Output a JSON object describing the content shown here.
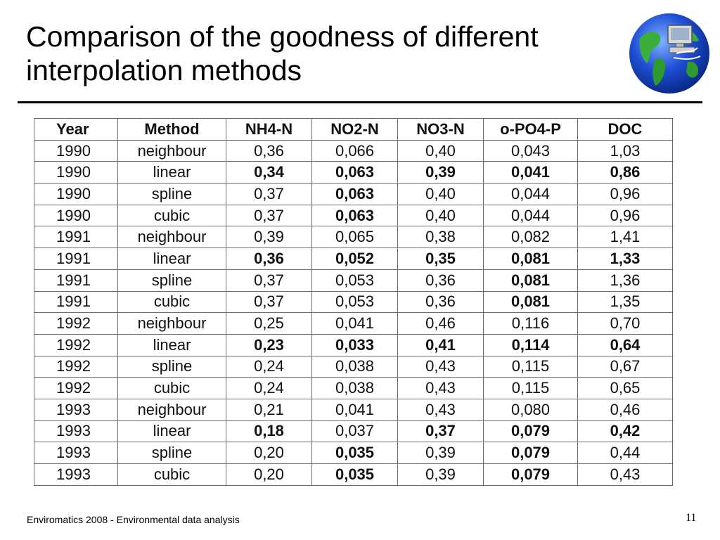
{
  "slide": {
    "title": "Comparison of the goodness of different interpolation methods",
    "footer": "Enviromatics 2008 - Environmental data analysis",
    "page_number": "11",
    "logo_icon": "globe-computer-icon"
  },
  "table": {
    "headers": [
      "Year",
      "Method",
      "NH4-N",
      "NO2-N",
      "NO3-N",
      "o-PO4-P",
      "DOC"
    ],
    "rows": [
      {
        "cells": [
          "1990",
          "neighbour",
          "0,36",
          "0,066",
          "0,40",
          "0,043",
          "1,03"
        ],
        "bold": []
      },
      {
        "cells": [
          "1990",
          "linear",
          "0,34",
          "0,063",
          "0,39",
          "0,041",
          "0,86"
        ],
        "bold": [
          2,
          3,
          4,
          5,
          6
        ]
      },
      {
        "cells": [
          "1990",
          "spline",
          "0,37",
          "0,063",
          "0,40",
          "0,044",
          "0,96"
        ],
        "bold": [
          3
        ]
      },
      {
        "cells": [
          "1990",
          "cubic",
          "0,37",
          "0,063",
          "0,40",
          "0,044",
          "0,96"
        ],
        "bold": [
          3
        ]
      },
      {
        "cells": [
          "1991",
          "neighbour",
          "0,39",
          "0,065",
          "0,38",
          "0,082",
          "1,41"
        ],
        "bold": []
      },
      {
        "cells": [
          "1991",
          "linear",
          "0,36",
          "0,052",
          "0,35",
          "0,081",
          "1,33"
        ],
        "bold": [
          2,
          3,
          4,
          5,
          6
        ]
      },
      {
        "cells": [
          "1991",
          "spline",
          "0,37",
          "0,053",
          "0,36",
          "0,081",
          "1,36"
        ],
        "bold": [
          5
        ]
      },
      {
        "cells": [
          "1991",
          "cubic",
          "0,37",
          "0,053",
          "0,36",
          "0,081",
          "1,35"
        ],
        "bold": [
          5
        ]
      },
      {
        "cells": [
          "1992",
          "neighbour",
          "0,25",
          "0,041",
          "0,46",
          "0,116",
          "0,70"
        ],
        "bold": []
      },
      {
        "cells": [
          "1992",
          "linear",
          "0,23",
          "0,033",
          "0,41",
          "0,114",
          "0,64"
        ],
        "bold": [
          2,
          3,
          4,
          5,
          6
        ]
      },
      {
        "cells": [
          "1992",
          "spline",
          "0,24",
          "0,038",
          "0,43",
          "0,115",
          "0,67"
        ],
        "bold": []
      },
      {
        "cells": [
          "1992",
          "cubic",
          "0,24",
          "0,038",
          "0,43",
          "0,115",
          "0,65"
        ],
        "bold": []
      },
      {
        "cells": [
          "1993",
          "neighbour",
          "0,21",
          "0,041",
          "0,43",
          "0,080",
          "0,46"
        ],
        "bold": []
      },
      {
        "cells": [
          "1993",
          "linear",
          "0,18",
          "0,037",
          "0,37",
          "0,079",
          "0,42"
        ],
        "bold": [
          2,
          4,
          5,
          6
        ]
      },
      {
        "cells": [
          "1993",
          "spline",
          "0,20",
          "0,035",
          "0,39",
          "0,079",
          "0,44"
        ],
        "bold": [
          3,
          5
        ]
      },
      {
        "cells": [
          "1993",
          "cubic",
          "0,20",
          "0,035",
          "0,39",
          "0,079",
          "0,43"
        ],
        "bold": [
          3,
          5
        ]
      }
    ]
  }
}
